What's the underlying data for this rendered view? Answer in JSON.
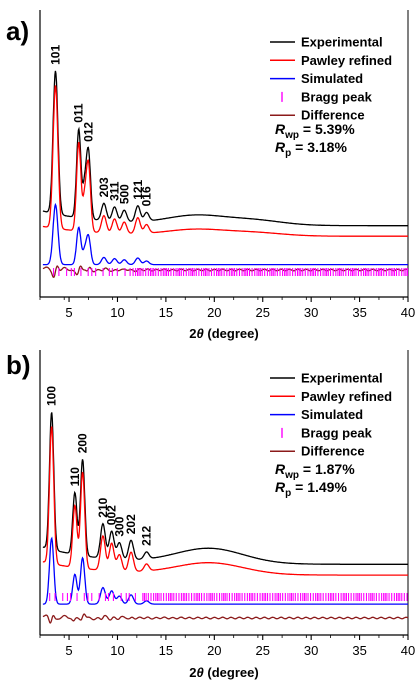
{
  "chart_data": [
    {
      "type": "line",
      "panel_label": "a)",
      "xlabel_prefix": "2",
      "xlabel_theta": "θ",
      "xlabel_suffix": " (degree)",
      "xlim": [
        2,
        40
      ],
      "xticks": [
        5,
        10,
        15,
        20,
        25,
        30,
        35,
        40
      ],
      "ylabel": "",
      "legend": [
        {
          "name": "Experimental",
          "color": "#000000",
          "marker": "line"
        },
        {
          "name": "Pawley refined",
          "color": "#ff0000",
          "marker": "line"
        },
        {
          "name": "Simulated",
          "color": "#0000ff",
          "marker": "line"
        },
        {
          "name": "Bragg peak",
          "color": "#ff00ff",
          "marker": "tick"
        },
        {
          "name": "Difference",
          "color": "#8b1a1a",
          "marker": "line"
        }
      ],
      "r_factors": [
        {
          "symbol": "R",
          "sub": "wp",
          "text": " = 5.39%"
        },
        {
          "symbol": "R",
          "sub": "p",
          "text": " = 3.18%"
        }
      ],
      "peak_labels": [
        {
          "label": "101",
          "x": 3.6
        },
        {
          "label": "011",
          "x": 6.0
        },
        {
          "label": "012",
          "x": 7.0
        },
        {
          "label": "203",
          "x": 8.6
        },
        {
          "label": "311",
          "x": 9.7
        },
        {
          "label": "500",
          "x": 10.7
        },
        {
          "label": "121",
          "x": 12.1
        },
        {
          "label": "016",
          "x": 13.0
        }
      ],
      "peaks": [
        {
          "x": 3.6,
          "h": 1.0,
          "w": 0.25
        },
        {
          "x": 6.0,
          "h": 0.62,
          "w": 0.22
        },
        {
          "x": 7.0,
          "h": 0.47,
          "w": 0.22
        },
        {
          "x": 6.6,
          "h": 0.2,
          "w": 0.2
        },
        {
          "x": 8.6,
          "h": 0.12,
          "w": 0.25
        },
        {
          "x": 9.7,
          "h": 0.1,
          "w": 0.25
        },
        {
          "x": 10.7,
          "h": 0.08,
          "w": 0.25
        },
        {
          "x": 12.1,
          "h": 0.11,
          "w": 0.25
        },
        {
          "x": 13.0,
          "h": 0.06,
          "w": 0.25
        }
      ],
      "amorphous": [
        {
          "x": 18.0,
          "h": 0.07,
          "w": 3.0
        },
        {
          "x": 24.0,
          "h": 0.04,
          "w": 3.0
        }
      ],
      "series": [
        {
          "name": "Experimental",
          "color": "#000000",
          "base": 0.62,
          "scale": 1.0,
          "bg": 0.18
        },
        {
          "name": "Pawley refined",
          "color": "#ff0000",
          "base": 0.54,
          "scale": 1.0,
          "bg": 0.12
        },
        {
          "name": "Simulated",
          "color": "#0000ff",
          "base": 0.28,
          "scale": 0.42,
          "bg": 0.0
        },
        {
          "name": "Difference",
          "color": "#8b1a1a",
          "base": 0.04,
          "scale": 0.04,
          "bg": 0.0
        }
      ],
      "bragg": {
        "start": 3.4,
        "end": 40.0,
        "dense_from": 11.5
      }
    },
    {
      "type": "line",
      "panel_label": "b)",
      "xlabel_prefix": "2",
      "xlabel_theta": "θ",
      "xlabel_suffix": " (degree)",
      "xlim": [
        2,
        40
      ],
      "xticks": [
        5,
        10,
        15,
        20,
        25,
        30,
        35,
        40
      ],
      "ylabel": "",
      "legend": [
        {
          "name": "Experimental",
          "color": "#000000",
          "marker": "line"
        },
        {
          "name": "Pawley refined",
          "color": "#ff0000",
          "marker": "line"
        },
        {
          "name": "Simulated",
          "color": "#0000ff",
          "marker": "line"
        },
        {
          "name": "Bragg peak",
          "color": "#ff00ff",
          "marker": "tick"
        },
        {
          "name": "Difference",
          "color": "#8b1a1a",
          "marker": "line"
        }
      ],
      "r_factors": [
        {
          "symbol": "R",
          "sub": "wp",
          "text": " = 1.87%"
        },
        {
          "symbol": "R",
          "sub": "p",
          "text": " = 1.49%"
        }
      ],
      "peak_labels": [
        {
          "label": "100",
          "x": 3.2
        },
        {
          "label": "110",
          "x": 5.6
        },
        {
          "label": "200",
          "x": 6.4
        },
        {
          "label": "210",
          "x": 8.5
        },
        {
          "label": "002",
          "x": 9.4
        },
        {
          "label": "300",
          "x": 10.2
        },
        {
          "label": "202",
          "x": 11.4
        },
        {
          "label": "212",
          "x": 13.0
        }
      ],
      "peaks": [
        {
          "x": 3.2,
          "h": 1.0,
          "w": 0.22
        },
        {
          "x": 5.6,
          "h": 0.45,
          "w": 0.22
        },
        {
          "x": 6.4,
          "h": 0.7,
          "w": 0.22
        },
        {
          "x": 8.5,
          "h": 0.25,
          "w": 0.25
        },
        {
          "x": 9.4,
          "h": 0.2,
          "w": 0.25
        },
        {
          "x": 10.2,
          "h": 0.12,
          "w": 0.25
        },
        {
          "x": 11.4,
          "h": 0.14,
          "w": 0.25
        },
        {
          "x": 13.0,
          "h": 0.05,
          "w": 0.25
        }
      ],
      "amorphous": [
        {
          "x": 19.5,
          "h": 0.1,
          "w": 3.5
        }
      ],
      "series": [
        {
          "name": "Experimental",
          "color": "#000000",
          "base": 0.6,
          "scale": 1.0,
          "bg": 0.22
        },
        {
          "name": "Pawley refined",
          "color": "#ff0000",
          "base": 0.5,
          "scale": 1.0,
          "bg": 0.17
        },
        {
          "name": "Simulated",
          "color": "#0000ff",
          "base": 0.27,
          "scale": 0.48,
          "bg": 0.0
        },
        {
          "name": "Difference",
          "color": "#8b1a1a",
          "base": 0.04,
          "scale": 0.04,
          "bg": 0.0
        }
      ],
      "bragg": {
        "start": 3.0,
        "end": 40.0,
        "dense_from": 12.0
      }
    }
  ]
}
